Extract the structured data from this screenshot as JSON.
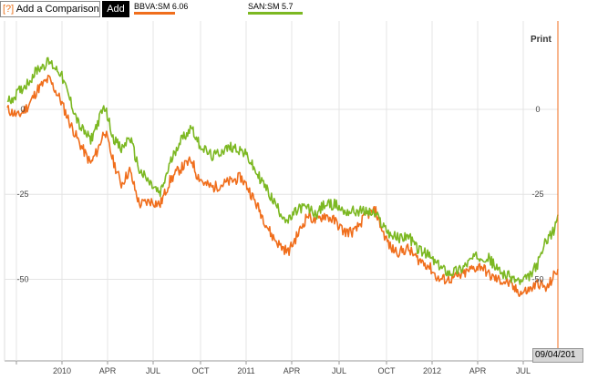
{
  "toolbar": {
    "help_mark": "[?]",
    "add_comparison_label": "Add a Comparison",
    "add_label": "Add",
    "print_label": "Print"
  },
  "legend": [
    {
      "label": "BBVA:SM 6.06",
      "color": "#f06e1c"
    },
    {
      "label": "SAN:SM 5.7",
      "color": "#7cb822"
    }
  ],
  "cursor_date": "09/04/201",
  "chart_data": {
    "type": "line",
    "x_tick_labels": [
      "2010",
      "APR",
      "JUL",
      "OCT",
      "2011",
      "APR",
      "JUL",
      "OCT",
      "2012",
      "APR",
      "JUL"
    ],
    "y_tick_labels": [
      "0",
      "-25",
      "-50"
    ],
    "y_ticks": [
      0,
      -25,
      -50
    ],
    "ylim": [
      -74,
      26
    ],
    "series": [
      {
        "name": "BBVA:SM 6.06",
        "color": "#f06e1c",
        "points": [
          [
            0,
            0
          ],
          [
            8,
            -2
          ],
          [
            15,
            1
          ],
          [
            22,
            6
          ],
          [
            30,
            9
          ],
          [
            38,
            3
          ],
          [
            45,
            -4
          ],
          [
            52,
            -10
          ],
          [
            60,
            -16
          ],
          [
            65,
            -12
          ],
          [
            70,
            -6
          ],
          [
            76,
            -15
          ],
          [
            82,
            -22
          ],
          [
            88,
            -18
          ],
          [
            95,
            -28
          ],
          [
            103,
            -27
          ],
          [
            110,
            -28
          ],
          [
            117,
            -21
          ],
          [
            123,
            -18
          ],
          [
            129,
            -16
          ],
          [
            133,
            -15
          ],
          [
            136,
            -19
          ],
          [
            142,
            -22
          ],
          [
            148,
            -23
          ],
          [
            155,
            -22
          ],
          [
            162,
            -21
          ],
          [
            168,
            -20
          ],
          [
            173,
            -23
          ],
          [
            178,
            -27
          ],
          [
            183,
            -31
          ],
          [
            190,
            -37
          ],
          [
            196,
            -40
          ],
          [
            202,
            -42
          ],
          [
            210,
            -36
          ],
          [
            216,
            -31
          ],
          [
            222,
            -33
          ],
          [
            228,
            -31
          ],
          [
            236,
            -33
          ],
          [
            242,
            -36
          ],
          [
            250,
            -36
          ],
          [
            258,
            -31
          ],
          [
            265,
            -30
          ],
          [
            270,
            -36
          ],
          [
            276,
            -41
          ],
          [
            282,
            -42
          ],
          [
            288,
            -41
          ],
          [
            295,
            -44
          ],
          [
            303,
            -46
          ],
          [
            310,
            -50
          ],
          [
            318,
            -50
          ],
          [
            326,
            -49
          ],
          [
            334,
            -47
          ],
          [
            341,
            -46
          ],
          [
            347,
            -49
          ],
          [
            352,
            -50
          ],
          [
            360,
            -51
          ],
          [
            365,
            -53
          ],
          [
            370,
            -54
          ],
          [
            376,
            -53
          ],
          [
            382,
            -51
          ],
          [
            388,
            -53
          ],
          [
            393,
            -49
          ],
          [
            396,
            -47
          ]
        ]
      },
      {
        "name": "SAN:SM 5.7",
        "color": "#7cb822",
        "points": [
          [
            0,
            2
          ],
          [
            8,
            5
          ],
          [
            15,
            8
          ],
          [
            22,
            12
          ],
          [
            30,
            14
          ],
          [
            38,
            11
          ],
          [
            45,
            3
          ],
          [
            52,
            -5
          ],
          [
            60,
            -9
          ],
          [
            65,
            -4
          ],
          [
            70,
            1
          ],
          [
            76,
            -8
          ],
          [
            82,
            -12
          ],
          [
            88,
            -8
          ],
          [
            95,
            -18
          ],
          [
            103,
            -22
          ],
          [
            110,
            -25
          ],
          [
            117,
            -16
          ],
          [
            123,
            -10
          ],
          [
            129,
            -7
          ],
          [
            133,
            -5
          ],
          [
            136,
            -9
          ],
          [
            142,
            -12
          ],
          [
            148,
            -14
          ],
          [
            155,
            -12
          ],
          [
            162,
            -11
          ],
          [
            168,
            -12
          ],
          [
            173,
            -14
          ],
          [
            178,
            -18
          ],
          [
            183,
            -21
          ],
          [
            190,
            -26
          ],
          [
            196,
            -30
          ],
          [
            202,
            -33
          ],
          [
            210,
            -29
          ],
          [
            216,
            -29
          ],
          [
            222,
            -31
          ],
          [
            228,
            -28
          ],
          [
            236,
            -28
          ],
          [
            242,
            -30
          ],
          [
            250,
            -30
          ],
          [
            258,
            -30
          ],
          [
            265,
            -31
          ],
          [
            270,
            -34
          ],
          [
            276,
            -37
          ],
          [
            282,
            -38
          ],
          [
            288,
            -37
          ],
          [
            295,
            -41
          ],
          [
            303,
            -43
          ],
          [
            310,
            -46
          ],
          [
            318,
            -48
          ],
          [
            326,
            -47
          ],
          [
            334,
            -44
          ],
          [
            341,
            -43
          ],
          [
            347,
            -44
          ],
          [
            352,
            -47
          ],
          [
            360,
            -49
          ],
          [
            365,
            -50
          ],
          [
            370,
            -51
          ],
          [
            376,
            -49
          ],
          [
            382,
            -45
          ],
          [
            388,
            -38
          ],
          [
            393,
            -36
          ],
          [
            396,
            -31
          ]
        ]
      }
    ]
  }
}
